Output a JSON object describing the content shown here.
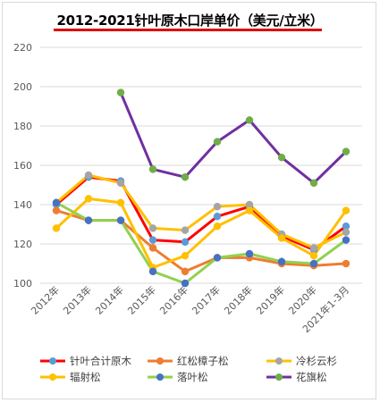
{
  "chart_data": {
    "type": "line",
    "title": "2012-2021针叶原木口岸单价（美元/立米）",
    "categories": [
      "2012年",
      "2013年",
      "2014年",
      "2015年",
      "2016年",
      "2017年",
      "2018年",
      "2019年",
      "2020年",
      "2021年1-3月"
    ],
    "ylim": [
      100,
      220
    ],
    "yticks": [
      100,
      120,
      140,
      160,
      180,
      200,
      220
    ],
    "grid": true,
    "legend_position": "bottom",
    "series": [
      {
        "name": "针叶合计原木",
        "color": "#ff0000",
        "marker": "#5b9bd5",
        "values": [
          140,
          154,
          152,
          122,
          121,
          134,
          139,
          124,
          117,
          129
        ]
      },
      {
        "name": "红松樟子松",
        "color": "#ed7d31",
        "marker": "#ed7d31",
        "values": [
          137,
          132,
          132,
          118,
          106,
          113,
          113,
          110,
          109,
          110
        ]
      },
      {
        "name": "冷杉云杉",
        "color": "#ffc000",
        "marker": "#a5a5a5",
        "values": [
          141,
          155,
          151,
          128,
          127,
          139,
          140,
          125,
          118,
          126
        ]
      },
      {
        "name": "辐射松",
        "color": "#ffc000",
        "marker": "#ffc000",
        "values": [
          128,
          143,
          141,
          108,
          114,
          129,
          137,
          123,
          114,
          137
        ]
      },
      {
        "name": "落叶松",
        "color": "#92d050",
        "marker": "#4472c4",
        "values": [
          141,
          132,
          132,
          106,
          100,
          113,
          115,
          111,
          110,
          122
        ]
      },
      {
        "name": "花旗松",
        "color": "#7030a0",
        "marker": "#70ad47",
        "values": [
          null,
          null,
          197,
          158,
          154,
          172,
          183,
          164,
          151,
          167
        ]
      }
    ]
  }
}
